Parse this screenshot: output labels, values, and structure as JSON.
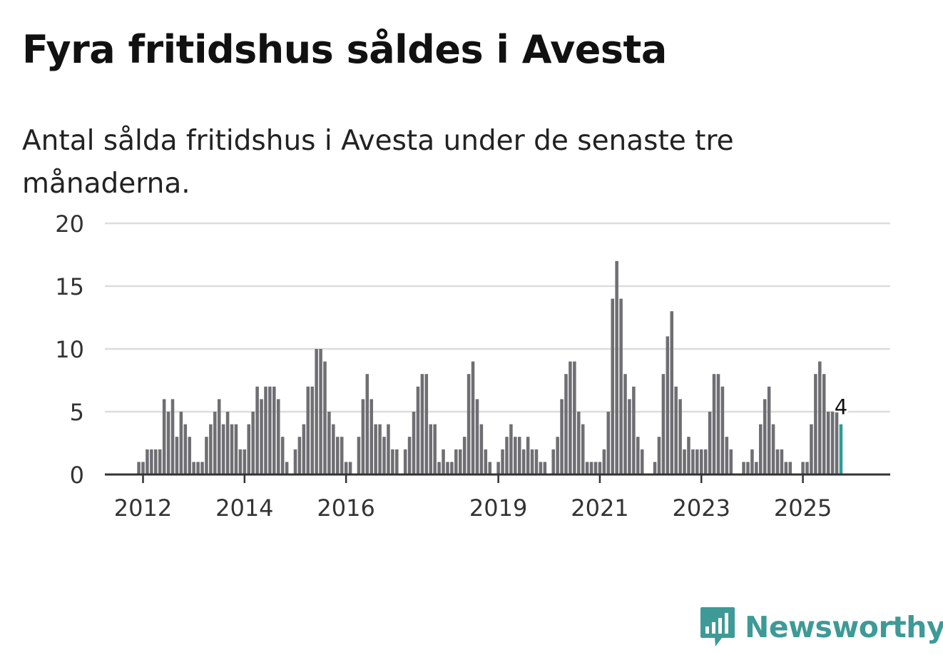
{
  "title": "Fyra fritidshus såldes i Avesta",
  "subtitle": "Antal sålda fritidshus i Avesta under de senaste tre månaderna.",
  "brand": {
    "name": "Newsworthy",
    "icon": "newsworthy-logo-icon",
    "color": "#3e9a96"
  },
  "colors": {
    "bar": "#6e6e73",
    "highlight": "#2a9d98",
    "grid": "#dddddd",
    "axis": "#333333"
  },
  "chart_data": {
    "type": "bar",
    "title": "Antal sålda fritidshus i Avesta under de senaste tre månaderna.",
    "xlabel": "",
    "ylabel": "",
    "ylim": [
      0,
      20
    ],
    "y_ticks": [
      0,
      5,
      10,
      15,
      20
    ],
    "x_ticks": [
      {
        "label": "2012",
        "index": 0
      },
      {
        "label": "2014",
        "index": 24
      },
      {
        "label": "2016",
        "index": 48
      },
      {
        "label": "2019",
        "index": 84
      },
      {
        "label": "2021",
        "index": 108
      },
      {
        "label": "2023",
        "index": 132
      },
      {
        "label": "2025",
        "index": 156
      }
    ],
    "start_index": -1,
    "values": [
      1,
      1,
      2,
      2,
      2,
      2,
      6,
      5,
      6,
      3,
      5,
      4,
      3,
      1,
      1,
      1,
      3,
      4,
      5,
      6,
      4,
      5,
      4,
      4,
      2,
      2,
      4,
      5,
      7,
      6,
      7,
      7,
      7,
      6,
      3,
      1,
      0,
      2,
      3,
      4,
      7,
      7,
      10,
      10,
      9,
      5,
      4,
      3,
      3,
      1,
      1,
      0,
      3,
      6,
      8,
      6,
      4,
      4,
      3,
      4,
      2,
      2,
      0,
      2,
      3,
      5,
      7,
      8,
      8,
      4,
      4,
      1,
      2,
      1,
      1,
      2,
      2,
      3,
      8,
      9,
      6,
      4,
      2,
      1,
      0,
      1,
      2,
      3,
      4,
      3,
      3,
      2,
      3,
      2,
      2,
      1,
      1,
      0,
      2,
      3,
      6,
      8,
      9,
      9,
      5,
      4,
      1,
      1,
      1,
      1,
      2,
      5,
      14,
      17,
      14,
      8,
      6,
      7,
      3,
      2,
      0,
      0,
      1,
      3,
      8,
      11,
      13,
      7,
      6,
      2,
      3,
      2,
      2,
      2,
      2,
      5,
      8,
      8,
      7,
      3,
      2,
      0,
      0,
      1,
      1,
      2,
      1,
      4,
      6,
      7,
      4,
      2,
      2,
      1,
      1,
      0,
      0,
      1,
      1,
      4,
      8,
      9,
      8,
      5,
      5,
      5,
      4
    ],
    "highlight": {
      "value": 4,
      "label": "4",
      "position": "last"
    }
  }
}
